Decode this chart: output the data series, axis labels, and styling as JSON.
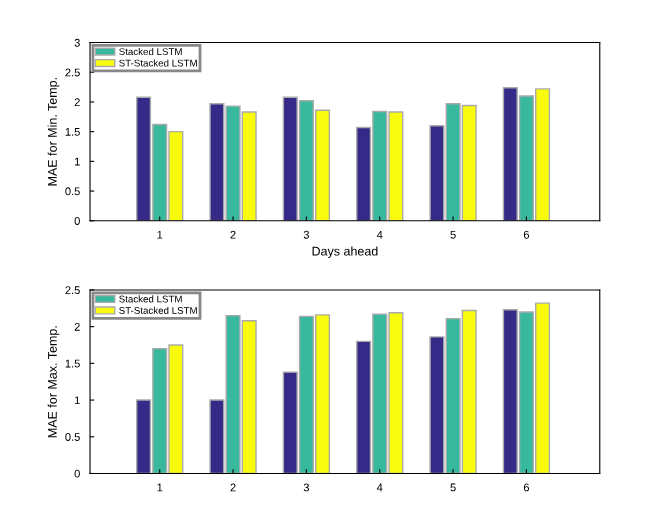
{
  "chart_data": [
    {
      "type": "bar",
      "ylabel": "MAE for Min. Temp.",
      "xlabel": "Days ahead",
      "categories": [
        "1",
        "2",
        "3",
        "4",
        "5",
        "6"
      ],
      "ylim": [
        0,
        3
      ],
      "yticks": [
        0,
        0.5,
        1,
        1.5,
        2,
        2.5,
        3
      ],
      "legend": "top left",
      "grid": false,
      "series": [
        {
          "color": "#352a87",
          "values": [
            2.08,
            1.97,
            2.08,
            1.57,
            1.6,
            2.24
          ]
        },
        {
          "name": "Stacked LSTM",
          "color": "#38b99e",
          "values": [
            1.62,
            1.93,
            2.02,
            1.84,
            1.97,
            2.1
          ]
        },
        {
          "name": "ST-Stacked LSTM",
          "color": "#f9fb0e",
          "values": [
            1.5,
            1.83,
            1.86,
            1.83,
            1.94,
            2.22
          ]
        }
      ]
    },
    {
      "type": "bar",
      "ylabel": "MAE for Max. Temp.",
      "categories": [
        "1",
        "2",
        "3",
        "4",
        "5",
        "6"
      ],
      "ylim": [
        0,
        2.5
      ],
      "yticks": [
        0,
        0.5,
        1,
        1.5,
        2,
        2.5
      ],
      "legend": "top left",
      "grid": false,
      "series": [
        {
          "color": "#352a87",
          "values": [
            1.0,
            1.0,
            1.38,
            1.8,
            1.86,
            2.23
          ]
        },
        {
          "name": "Stacked LSTM",
          "color": "#38b99e",
          "values": [
            1.7,
            2.15,
            2.14,
            2.17,
            2.11,
            2.2
          ]
        },
        {
          "name": "ST-Stacked LSTM",
          "color": "#f9fb0e",
          "values": [
            1.75,
            2.08,
            2.16,
            2.19,
            2.22,
            2.32
          ]
        }
      ]
    }
  ]
}
